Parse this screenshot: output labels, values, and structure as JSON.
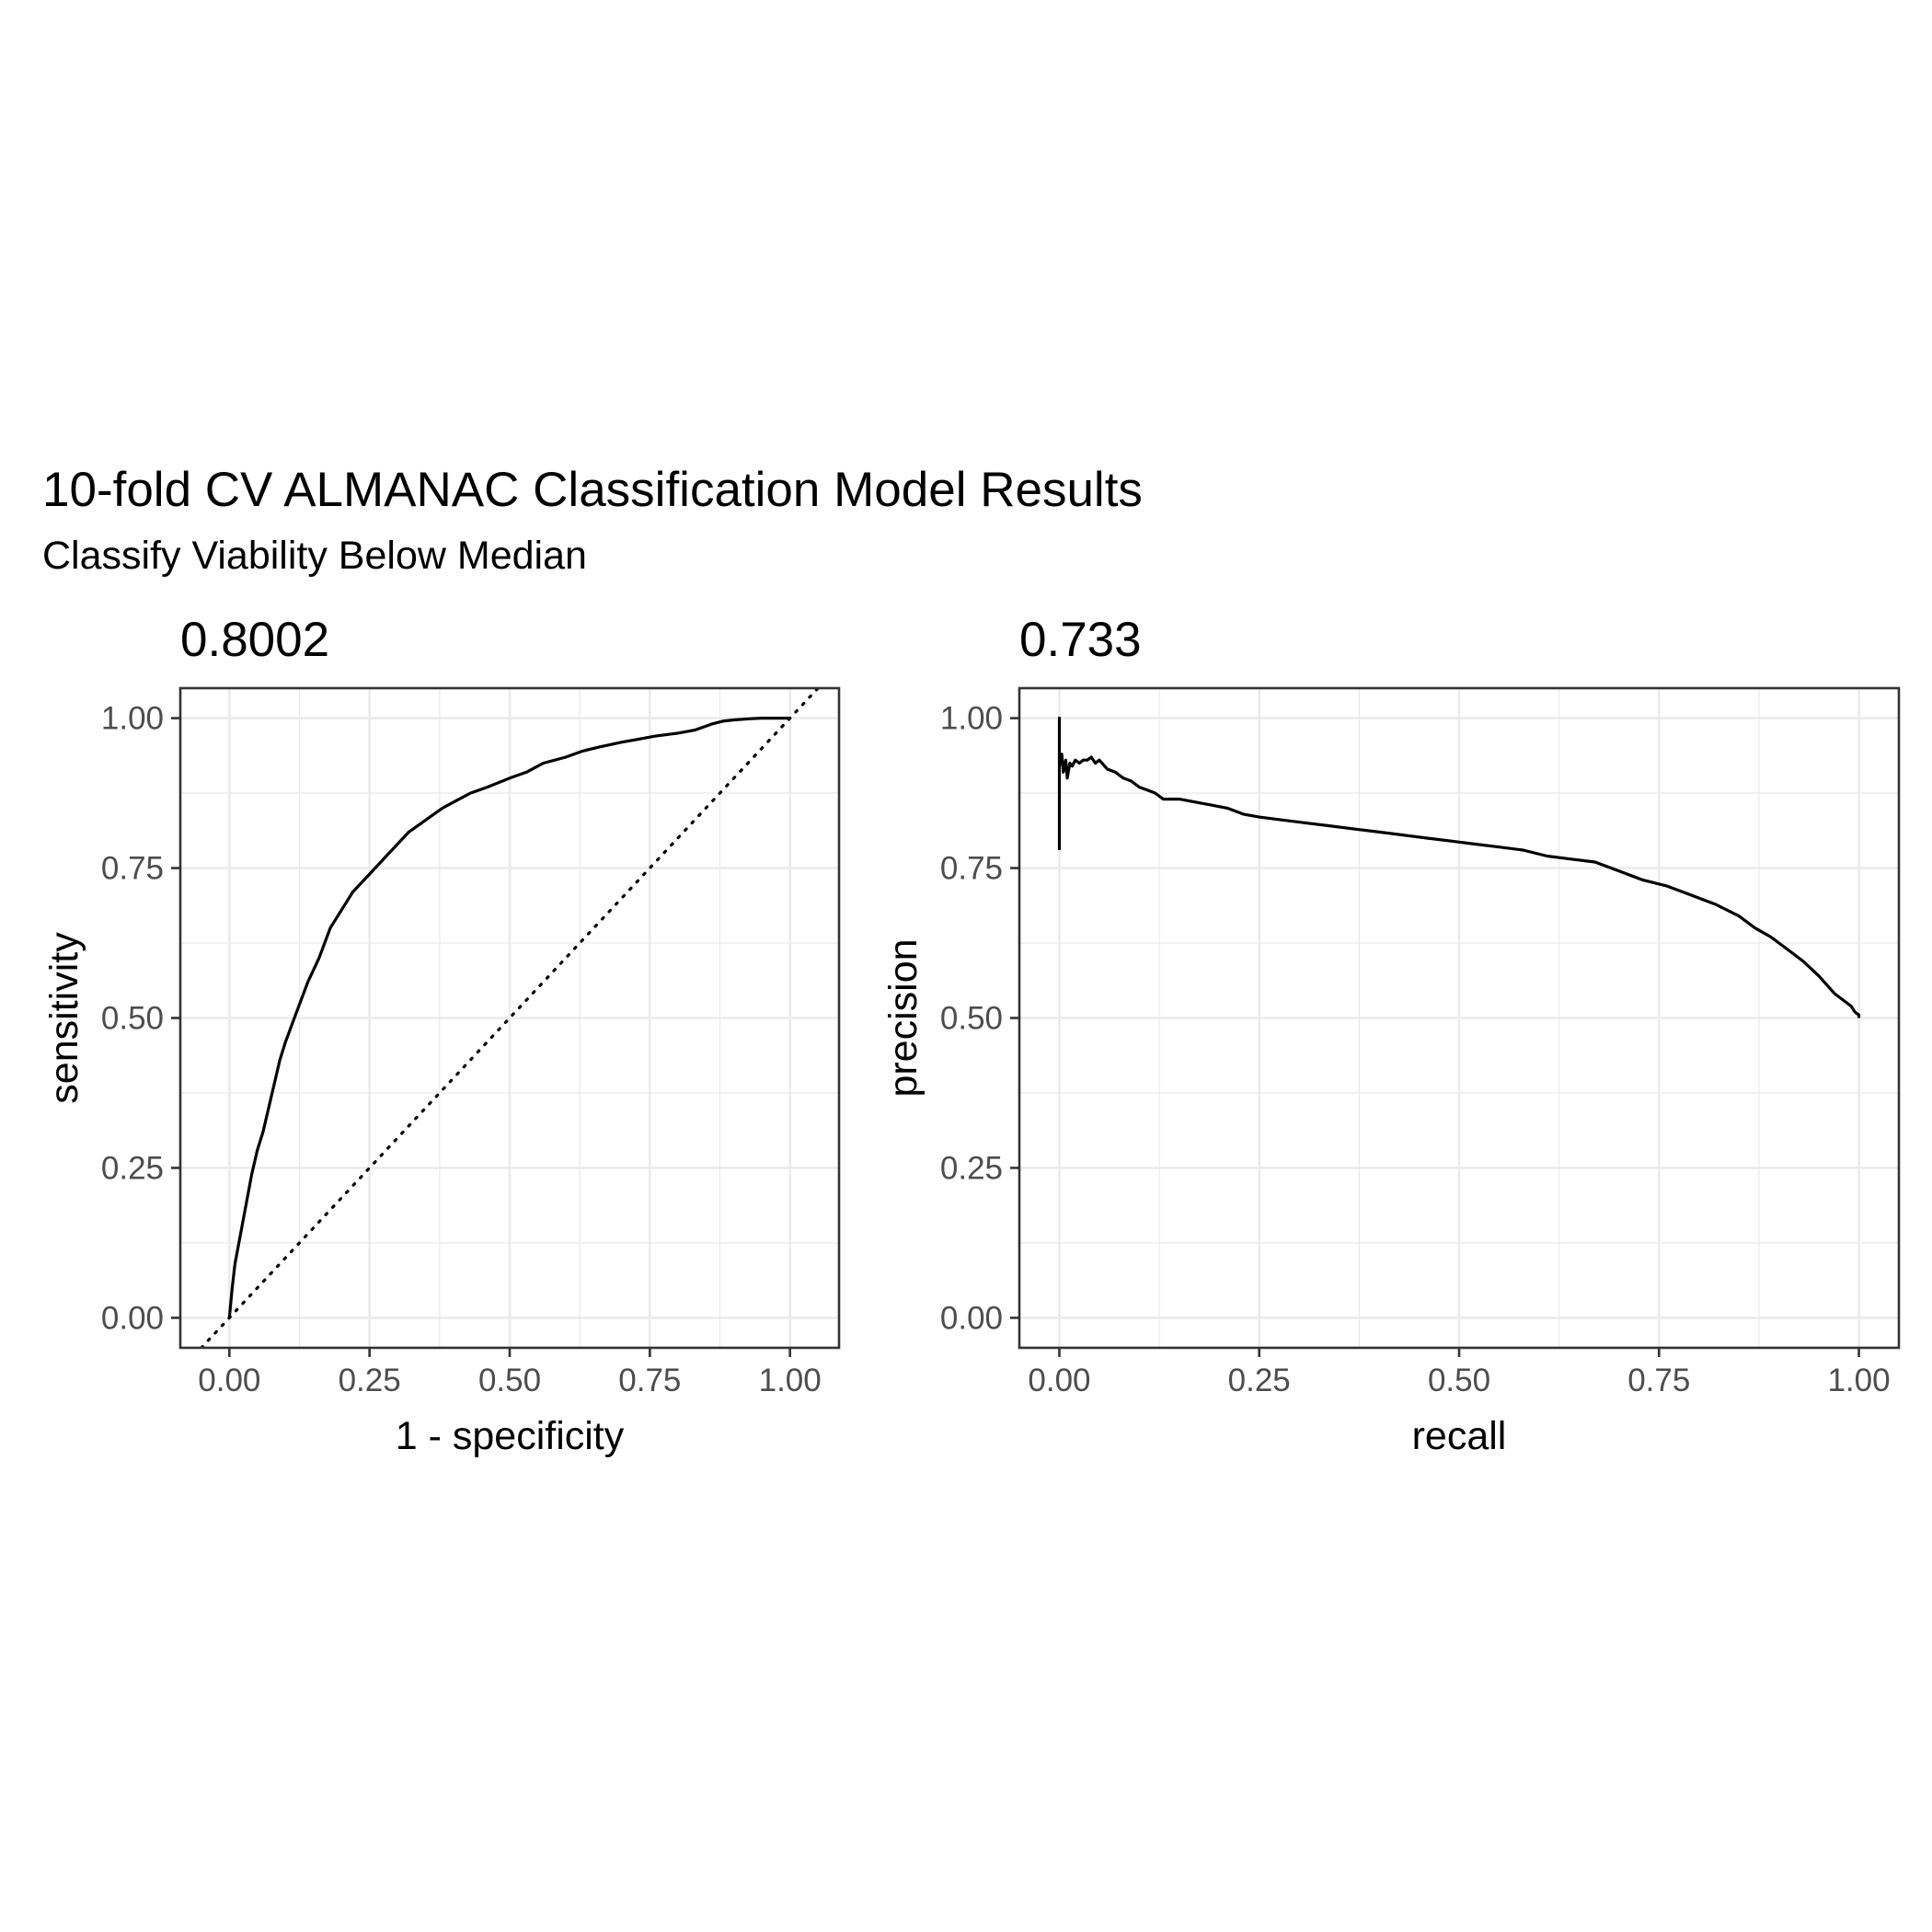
{
  "figure": {
    "title": "10-fold CV ALMANAC Classification Model Results",
    "subtitle": "Classify Viability Below Median"
  },
  "chart_data": [
    {
      "type": "line",
      "panel_title": "0.8002",
      "xlabel": "1 - specificity",
      "ylabel": "sensitivity",
      "xlim": [
        -0.0875,
        1.0875
      ],
      "ylim": [
        -0.05,
        1.05
      ],
      "x_ticks": [
        "0.00",
        "0.25",
        "0.50",
        "0.75",
        "1.00"
      ],
      "y_ticks": [
        "0.00",
        "0.25",
        "0.50",
        "0.75",
        "1.00"
      ],
      "grid": true,
      "reference_line": {
        "style": "dotted",
        "x": [
          -0.05,
          1.05
        ],
        "y": [
          -0.05,
          1.05
        ]
      },
      "series": [
        {
          "x": [
            0.0,
            0.005,
            0.01,
            0.02,
            0.03,
            0.04,
            0.05,
            0.06,
            0.07,
            0.08,
            0.09,
            0.1,
            0.12,
            0.14,
            0.16,
            0.18,
            0.2,
            0.22,
            0.25,
            0.28,
            0.3,
            0.32,
            0.35,
            0.38,
            0.4,
            0.43,
            0.46,
            0.5,
            0.53,
            0.56,
            0.6,
            0.63,
            0.66,
            0.7,
            0.73,
            0.76,
            0.8,
            0.83,
            0.86,
            0.88,
            0.9,
            0.93,
            0.95,
            0.97,
            1.0
          ],
          "y": [
            0.0,
            0.05,
            0.09,
            0.14,
            0.19,
            0.24,
            0.28,
            0.31,
            0.35,
            0.39,
            0.43,
            0.46,
            0.51,
            0.56,
            0.6,
            0.65,
            0.68,
            0.71,
            0.74,
            0.77,
            0.79,
            0.81,
            0.83,
            0.85,
            0.86,
            0.875,
            0.885,
            0.9,
            0.91,
            0.925,
            0.935,
            0.945,
            0.952,
            0.96,
            0.965,
            0.97,
            0.975,
            0.98,
            0.99,
            0.995,
            0.997,
            0.999,
            1.0,
            1.0,
            1.0
          ]
        }
      ]
    },
    {
      "type": "line",
      "panel_title": "0.733",
      "xlabel": "recall",
      "ylabel": "precision",
      "xlim": [
        -0.05,
        1.05
      ],
      "ylim": [
        -0.05,
        1.05
      ],
      "x_ticks": [
        "0.00",
        "0.25",
        "0.50",
        "0.75",
        "1.00"
      ],
      "y_ticks": [
        "0.00",
        "0.25",
        "0.50",
        "0.75",
        "1.00"
      ],
      "grid": true,
      "series": [
        {
          "x": [
            0.0,
            0.0,
            0.0,
            0.0,
            0.003,
            0.005,
            0.008,
            0.01,
            0.013,
            0.016,
            0.02,
            0.025,
            0.03,
            0.035,
            0.04,
            0.045,
            0.05,
            0.06,
            0.07,
            0.08,
            0.09,
            0.1,
            0.11,
            0.12,
            0.13,
            0.15,
            0.17,
            0.19,
            0.21,
            0.23,
            0.25,
            0.28,
            0.31,
            0.34,
            0.37,
            0.4,
            0.43,
            0.46,
            0.49,
            0.52,
            0.55,
            0.58,
            0.61,
            0.64,
            0.67,
            0.7,
            0.73,
            0.76,
            0.79,
            0.82,
            0.85,
            0.87,
            0.89,
            0.91,
            0.93,
            0.95,
            0.96,
            0.97,
            0.98,
            0.99,
            0.995,
            1.0,
            1.0
          ],
          "y": [
            0.78,
            1.0,
            0.85,
            0.92,
            0.94,
            0.91,
            0.93,
            0.9,
            0.925,
            0.92,
            0.93,
            0.925,
            0.93,
            0.93,
            0.935,
            0.925,
            0.93,
            0.915,
            0.91,
            0.9,
            0.895,
            0.885,
            0.88,
            0.875,
            0.865,
            0.865,
            0.86,
            0.855,
            0.85,
            0.84,
            0.835,
            0.83,
            0.825,
            0.82,
            0.815,
            0.81,
            0.805,
            0.8,
            0.795,
            0.79,
            0.785,
            0.78,
            0.77,
            0.765,
            0.76,
            0.745,
            0.73,
            0.72,
            0.705,
            0.69,
            0.67,
            0.65,
            0.635,
            0.615,
            0.595,
            0.57,
            0.555,
            0.54,
            0.53,
            0.52,
            0.51,
            0.505,
            0.5
          ]
        }
      ]
    }
  ]
}
